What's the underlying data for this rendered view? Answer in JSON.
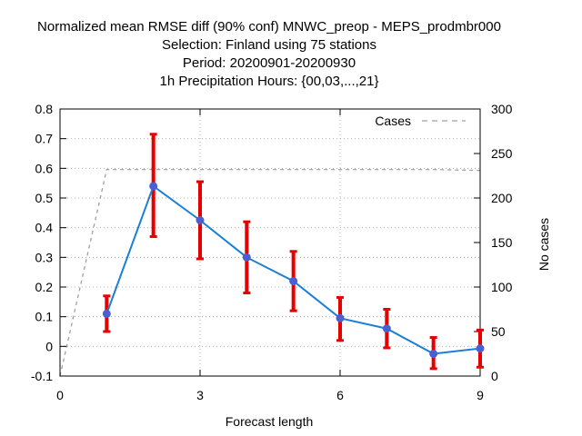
{
  "chart_data": {
    "type": "line",
    "title_lines": [
      "Normalized mean RMSE diff (90% conf) MNWC_preop - MEPS_prodmbr000",
      "Selection: Finland using    75 stations",
      "Period: 20200901-20200930",
      "1h Precipitation   Hours: {00,03,...,21}"
    ],
    "xlabel": "Forecast length",
    "ylabel": "",
    "y2label": "No cases",
    "xlim": [
      0,
      9
    ],
    "ylim": [
      -0.1,
      0.8
    ],
    "y2lim": [
      0,
      300
    ],
    "x_ticks": [
      0,
      3,
      6,
      9
    ],
    "y_ticks": [
      -0.1,
      0,
      0.1,
      0.2,
      0.3,
      0.4,
      0.5,
      0.6,
      0.7,
      0.8
    ],
    "y_tick_labels": [
      "-0.1",
      "0",
      "0.1",
      "0.2",
      "0.3",
      "0.4",
      "0.5",
      "0.6",
      "0.7",
      "0.8"
    ],
    "y2_ticks": [
      0,
      50,
      100,
      150,
      200,
      250,
      300
    ],
    "grid": true,
    "legend_position": "top-right",
    "series": [
      {
        "name": "",
        "color": "#1a7fd6",
        "marker_color": "#4a5fd0",
        "errorbar_color": "#e60000",
        "x": [
          1,
          2,
          3,
          4,
          5,
          6,
          7,
          8,
          9
        ],
        "values": [
          0.11,
          0.54,
          0.425,
          0.3,
          0.22,
          0.095,
          0.06,
          -0.025,
          -0.007
        ],
        "lower": [
          0.05,
          0.37,
          0.295,
          0.18,
          0.12,
          0.02,
          -0.005,
          -0.075,
          -0.07
        ],
        "upper": [
          0.17,
          0.715,
          0.555,
          0.42,
          0.32,
          0.165,
          0.125,
          0.03,
          0.055
        ]
      },
      {
        "name": "Cases",
        "axis": "y2",
        "style": "dashed",
        "color": "#a0a0a0",
        "x": [
          0,
          1,
          2,
          3,
          4,
          5,
          6,
          7,
          8,
          9
        ],
        "values": [
          0,
          232,
          232,
          232,
          232,
          232,
          232,
          232,
          232,
          231
        ]
      }
    ]
  }
}
